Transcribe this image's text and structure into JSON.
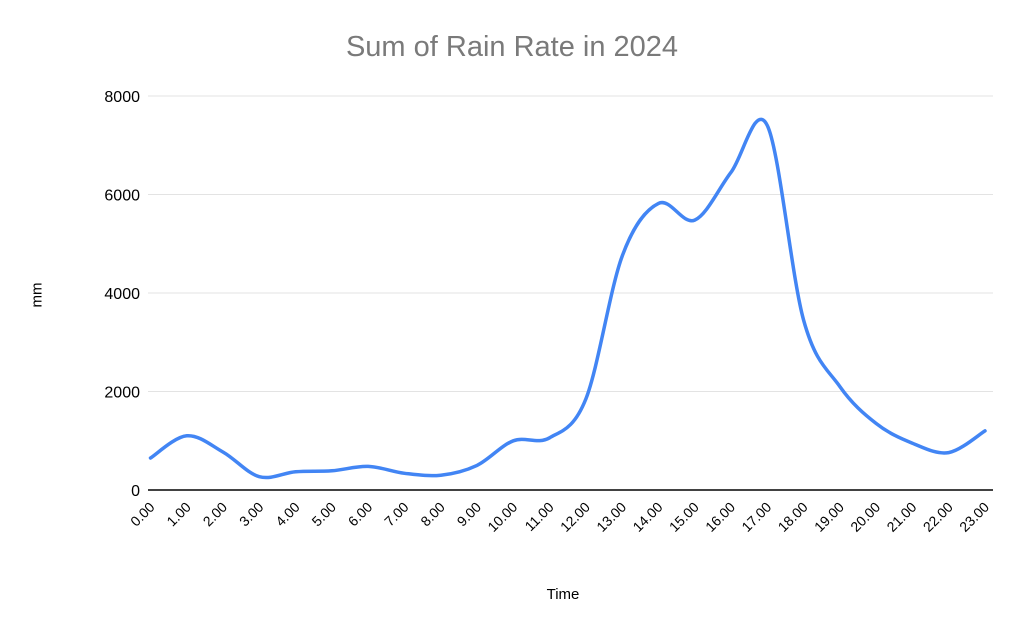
{
  "chart_data": {
    "type": "line",
    "title": "Sum of Rain Rate in 2024",
    "xlabel": "Time",
    "ylabel": "mm",
    "categories": [
      "0.00",
      "1.00",
      "2.00",
      "3.00",
      "4.00",
      "5.00",
      "6.00",
      "7.00",
      "8.00",
      "9.00",
      "10.00",
      "11.00",
      "12.00",
      "13.00",
      "14.00",
      "15.00",
      "16.00",
      "17.00",
      "18.00",
      "19.00",
      "20.00",
      "21.00",
      "22.00",
      "23.00"
    ],
    "values": [
      650,
      1100,
      770,
      270,
      370,
      390,
      480,
      340,
      300,
      500,
      1000,
      1060,
      1850,
      4750,
      5820,
      5480,
      6450,
      7400,
      3450,
      2100,
      1350,
      950,
      760,
      1200
    ],
    "ylim": [
      0,
      8000
    ],
    "yticks": [
      0,
      2000,
      4000,
      6000,
      8000
    ],
    "grid": true,
    "legend": "none",
    "smooth": true,
    "colors": {
      "line": "#4285f4",
      "title": "#7a7a7a",
      "gridline": "#e3e3e3",
      "axis_line": "#424242",
      "tick_label": "#000000"
    }
  }
}
